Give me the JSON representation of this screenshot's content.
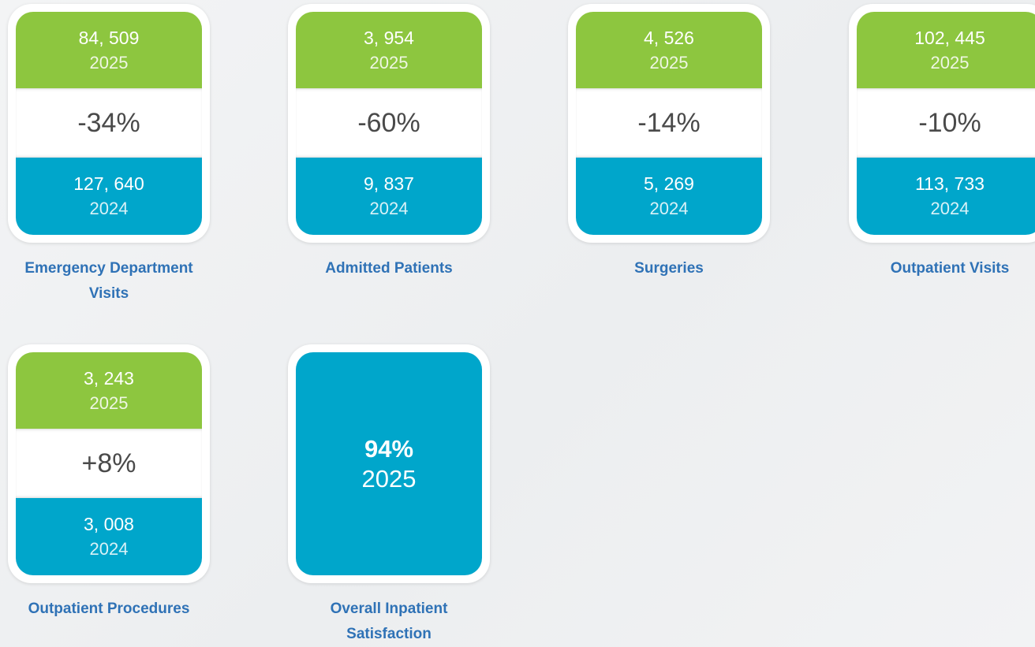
{
  "cards": [
    {
      "current_value": "84, 509",
      "current_year": "2025",
      "change": "-34%",
      "previous_value": "127, 640",
      "previous_year": "2024",
      "label": "Emergency Department Visits"
    },
    {
      "current_value": "3, 954",
      "current_year": "2025",
      "change": "-60%",
      "previous_value": "9, 837",
      "previous_year": "2024",
      "label": "Admitted Patients"
    },
    {
      "current_value": "4, 526",
      "current_year": "2025",
      "change": "-14%",
      "previous_value": "5, 269",
      "previous_year": "2024",
      "label": "Surgeries"
    },
    {
      "current_value": "102, 445",
      "current_year": "2025",
      "change": "-10%",
      "previous_value": "113, 733",
      "previous_year": "2024",
      "label": "Outpatient Visits"
    },
    {
      "current_value": "3, 243",
      "current_year": "2025",
      "change": "+8%",
      "previous_value": "3, 008",
      "previous_year": "2024",
      "label": "Outpatient Procedures"
    },
    {
      "current_value": "94%",
      "current_year": "2025",
      "label": "Overall Inpatient Satisfaction"
    }
  ]
}
